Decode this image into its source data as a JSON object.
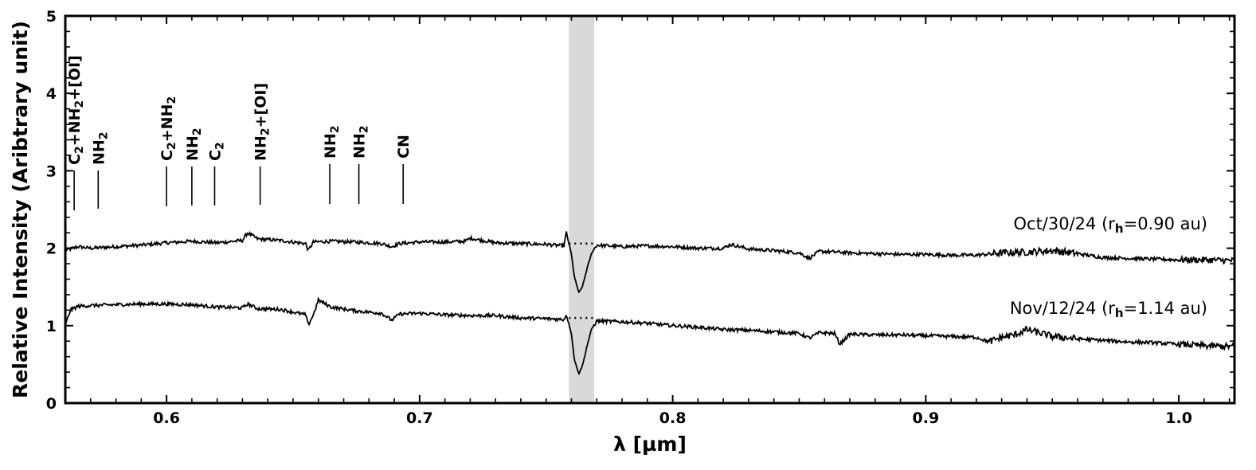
{
  "chart_data": {
    "type": "line",
    "title": "",
    "xlabel": "λ [µm]",
    "ylabel": "Relative Intensity (Aribtrary unit)",
    "xlim": [
      0.56,
      1.022
    ],
    "ylim": [
      0,
      5
    ],
    "x_ticks": [
      0.6,
      0.7,
      0.8,
      0.9,
      1.0
    ],
    "x_tick_labels": [
      "0.6",
      "0.7",
      "0.8",
      "0.9",
      "1.0"
    ],
    "y_ticks": [
      0,
      1,
      2,
      3,
      4,
      5
    ],
    "y_tick_labels": [
      "0",
      "1",
      "2",
      "3",
      "4",
      "5"
    ],
    "grid": false,
    "shaded_band": {
      "x_start": 0.759,
      "x_end": 0.769,
      "color": "#d9d9d9"
    },
    "emission_lines": [
      {
        "main": "C",
        "sub": "2",
        "rest": "+NH",
        "sub2": "2",
        "tail": "+[OI]",
        "x": 0.5635
      },
      {
        "main": "NH",
        "sub": "2",
        "rest": "",
        "sub2": "",
        "tail": "",
        "x": 0.573
      },
      {
        "main": "C",
        "sub": "2",
        "rest": "+NH",
        "sub2": "2",
        "tail": "",
        "x": 0.6
      },
      {
        "main": "NH",
        "sub": "2",
        "rest": "",
        "sub2": "",
        "tail": "",
        "x": 0.61
      },
      {
        "main": "C",
        "sub": "2",
        "rest": "",
        "sub2": "",
        "tail": "",
        "x": 0.619
      },
      {
        "main": "NH",
        "sub": "2",
        "rest": "+[OI]",
        "sub2": "",
        "tail": "",
        "x": 0.637
      },
      {
        "main": "NH",
        "sub": "2",
        "rest": "",
        "sub2": "",
        "tail": "",
        "x": 0.6645
      },
      {
        "main": "NH",
        "sub": "2",
        "rest": "",
        "sub2": "",
        "tail": "",
        "x": 0.676
      },
      {
        "main": "CN",
        "sub": "",
        "rest": "",
        "sub2": "",
        "tail": "",
        "x": 0.6935
      }
    ],
    "series": [
      {
        "date": "Oct/30/24",
        "label_pre": "(r",
        "label_sub": "h",
        "label_post": "=0.90 au)",
        "color": "#000000",
        "x": [
          0.56,
          0.565,
          0.57,
          0.58,
          0.59,
          0.6,
          0.61,
          0.62,
          0.63,
          0.632,
          0.636,
          0.645,
          0.655,
          0.656,
          0.658,
          0.665,
          0.675,
          0.685,
          0.689,
          0.692,
          0.7,
          0.71,
          0.718,
          0.72,
          0.73,
          0.74,
          0.75,
          0.757,
          0.758,
          0.76,
          0.7612,
          0.763,
          0.7645,
          0.766,
          0.768,
          0.77,
          0.78,
          0.79,
          0.8,
          0.81,
          0.82,
          0.823,
          0.83,
          0.84,
          0.85,
          0.854,
          0.858,
          0.865,
          0.87,
          0.88,
          0.89,
          0.9,
          0.91,
          0.92,
          0.93,
          0.94,
          0.95,
          0.96,
          0.97,
          0.98,
          0.99,
          1.0,
          1.01,
          1.022
        ],
        "y": [
          1.97,
          2.02,
          2.0,
          2.02,
          2.04,
          2.07,
          2.09,
          2.07,
          2.1,
          2.2,
          2.12,
          2.1,
          2.06,
          1.97,
          2.08,
          2.09,
          2.08,
          2.06,
          2.02,
          2.06,
          2.08,
          2.08,
          2.09,
          2.13,
          2.07,
          2.06,
          2.05,
          2.03,
          2.2,
          1.92,
          1.62,
          1.42,
          1.52,
          1.72,
          1.94,
          2.04,
          2.02,
          2.03,
          2.02,
          2.0,
          2.0,
          2.05,
          1.99,
          1.97,
          1.94,
          1.87,
          1.96,
          1.95,
          1.94,
          1.93,
          1.92,
          1.92,
          1.91,
          1.91,
          1.94,
          1.95,
          1.97,
          1.93,
          1.88,
          1.87,
          1.86,
          1.85,
          1.85,
          1.84
        ],
        "dotted_segment": {
          "x_start": 0.759,
          "x_end": 0.769,
          "y": 2.06
        }
      },
      {
        "date": "Nov/12/24",
        "label_pre": "(r",
        "label_sub": "h",
        "label_post": "=1.14 au)",
        "color": "#000000",
        "x": [
          0.56,
          0.562,
          0.565,
          0.57,
          0.58,
          0.59,
          0.6,
          0.61,
          0.62,
          0.63,
          0.632,
          0.636,
          0.645,
          0.655,
          0.656,
          0.658,
          0.66,
          0.665,
          0.675,
          0.685,
          0.689,
          0.692,
          0.7,
          0.71,
          0.72,
          0.73,
          0.74,
          0.75,
          0.757,
          0.758,
          0.76,
          0.7612,
          0.763,
          0.7645,
          0.766,
          0.768,
          0.77,
          0.78,
          0.79,
          0.8,
          0.81,
          0.82,
          0.83,
          0.84,
          0.85,
          0.854,
          0.858,
          0.864,
          0.866,
          0.87,
          0.88,
          0.89,
          0.9,
          0.91,
          0.92,
          0.925,
          0.93,
          0.935,
          0.94,
          0.95,
          0.96,
          0.97,
          0.98,
          0.99,
          1.0,
          1.01,
          1.022
        ],
        "y": [
          1.0,
          1.2,
          1.25,
          1.26,
          1.27,
          1.28,
          1.28,
          1.27,
          1.24,
          1.23,
          1.28,
          1.22,
          1.21,
          1.14,
          1.01,
          1.14,
          1.33,
          1.24,
          1.19,
          1.16,
          1.07,
          1.15,
          1.16,
          1.14,
          1.13,
          1.13,
          1.1,
          1.09,
          1.08,
          1.14,
          0.9,
          0.55,
          0.38,
          0.5,
          0.72,
          0.96,
          1.06,
          1.05,
          1.03,
          1.0,
          0.98,
          0.95,
          0.94,
          0.92,
          0.9,
          0.84,
          0.91,
          0.9,
          0.76,
          0.89,
          0.88,
          0.88,
          0.87,
          0.86,
          0.85,
          0.79,
          0.85,
          0.88,
          0.95,
          0.86,
          0.83,
          0.81,
          0.79,
          0.78,
          0.76,
          0.74,
          0.73
        ],
        "dotted_segment": {
          "x_start": 0.759,
          "x_end": 0.769,
          "y": 1.1
        }
      }
    ]
  }
}
